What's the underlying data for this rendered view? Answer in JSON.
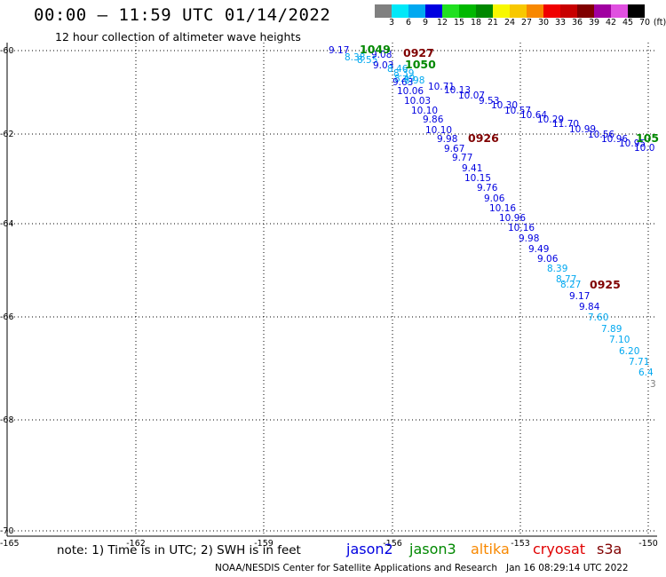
{
  "header": {
    "title": "00:00 – 11:59 UTC 01/14/2022",
    "subtitle": "12 hour collection of altimeter wave heights"
  },
  "legend": {
    "unit": "(ft)",
    "bins": [
      {
        "label": "3",
        "color": "#808080"
      },
      {
        "label": "6",
        "color": "#00e8f8"
      },
      {
        "label": "9",
        "color": "#00a8f0"
      },
      {
        "label": "12",
        "color": "#0000e0"
      },
      {
        "label": "15",
        "color": "#20e020"
      },
      {
        "label": "18",
        "color": "#00b800"
      },
      {
        "label": "21",
        "color": "#008800"
      },
      {
        "label": "24",
        "color": "#f8f800"
      },
      {
        "label": "27",
        "color": "#f8c800"
      },
      {
        "label": "30",
        "color": "#f88800"
      },
      {
        "label": "33",
        "color": "#f00000"
      },
      {
        "label": "36",
        "color": "#c80000"
      },
      {
        "label": "39",
        "color": "#800000"
      },
      {
        "label": "42",
        "color": "#a000a0"
      },
      {
        "label": "45",
        "color": "#e050e0"
      },
      {
        "label": "70",
        "color": "#000000"
      }
    ]
  },
  "axes": {
    "lat_labels": [
      "-60",
      "-62",
      "-64",
      "-66",
      "-68",
      "-70"
    ],
    "lon_labels": [
      "-165",
      "-162",
      "-159",
      "-156",
      "-153",
      "-150"
    ]
  },
  "time_labels": [
    {
      "text": "1049",
      "color": "#008800"
    },
    {
      "text": "0927",
      "color": "#800000"
    },
    {
      "text": "1050",
      "color": "#008800"
    },
    {
      "text": "0926",
      "color": "#800000"
    },
    {
      "text": "0925",
      "color": "#800000"
    },
    {
      "text": "105",
      "color": "#008800"
    }
  ],
  "tracks": {
    "track_a": [
      "9.17",
      "8.38",
      "8.55",
      "9.08",
      "9.03",
      "8.46",
      "8.39",
      "8.49",
      "9.63",
      "10.06",
      "10.03",
      "10.10",
      "9.86",
      "10.10",
      "9.98",
      "9.67",
      "9.77",
      "9.41",
      "10.15",
      "9.76",
      "9.06",
      "10.16",
      "10.96",
      "10.16",
      "9.98",
      "9.49",
      "9.06",
      "8.39",
      "8.77",
      "8.27",
      "9.17",
      "9.84",
      "7.60",
      "7.89",
      "7.10",
      "6.20",
      "7.71",
      "6.4",
      "3"
    ],
    "track_b": [
      "8.98",
      "10.71",
      "10.13",
      "10.07",
      "9.53",
      "10.30",
      "10.57",
      "10.64",
      "10.29",
      "11.70",
      "10.99",
      "10.56",
      "10.96",
      "10.95",
      "10.0"
    ]
  },
  "note": "note: 1) Time is in UTC; 2) SWH is in feet",
  "satellites": [
    {
      "name": "jason2",
      "color": "#0000e0"
    },
    {
      "name": "jason3",
      "color": "#008800"
    },
    {
      "name": "altika",
      "color": "#f88800"
    },
    {
      "name": "cryosat",
      "color": "#e00000"
    },
    {
      "name": "s3a",
      "color": "#800000"
    }
  ],
  "credit": "NOAA/NESDIS Center for Satellite Applications and Research",
  "timestamp": "Jan 16 08:29:14 UTC 2022"
}
